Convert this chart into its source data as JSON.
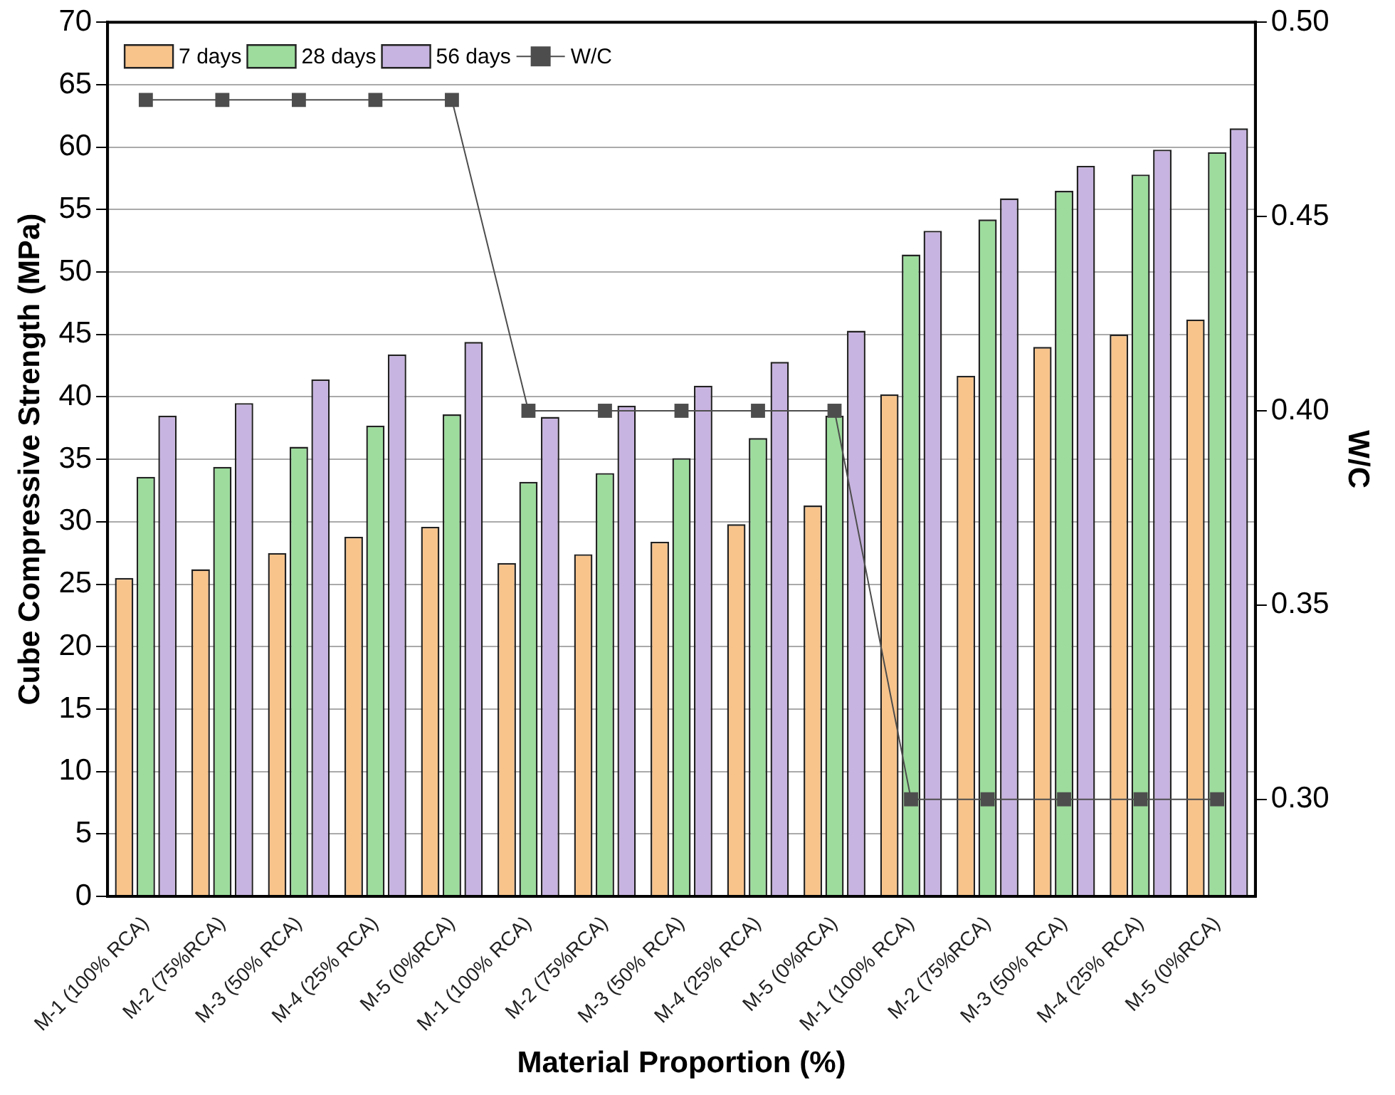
{
  "chart_data": {
    "type": "bar",
    "xlabel": "Material Proportion (%)",
    "ylabel": "Cube Compressive Strength (MPa)",
    "y2label": "W/C",
    "categories": [
      "M-1 (100% RCA)",
      "M-2 (75%RCA)",
      "M-3 (50% RCA)",
      "M-4 (25% RCA)",
      "M-5 (0%RCA)",
      "M-1 (100% RCA)",
      "M-2 (75%RCA)",
      "M-3 (50% RCA)",
      "M-4 (25% RCA)",
      "M-5 (0%RCA)",
      "M-1 (100% RCA)",
      "M-2 (75%RCA)",
      "M-3 (50% RCA)",
      "M-4 (25% RCA)",
      "M-5 (0%RCA)"
    ],
    "series": [
      {
        "name": "7 days",
        "color": "#f8c48c",
        "values": [
          25.5,
          26.2,
          27.5,
          28.8,
          29.6,
          26.7,
          27.4,
          28.4,
          29.8,
          31.3,
          40.2,
          41.7,
          44.0,
          45.0,
          46.2
        ]
      },
      {
        "name": "28 days",
        "color": "#9ddc9d",
        "values": [
          33.6,
          34.4,
          36.0,
          37.7,
          38.6,
          33.2,
          33.9,
          35.1,
          36.7,
          38.5,
          51.4,
          54.2,
          56.5,
          57.8,
          59.6
        ]
      },
      {
        "name": "56 days",
        "color": "#c8b4e0",
        "values": [
          38.5,
          39.5,
          41.4,
          43.4,
          44.4,
          38.4,
          39.3,
          40.9,
          42.8,
          45.3,
          53.3,
          55.9,
          58.5,
          59.8,
          61.5
        ]
      },
      {
        "name": "W/C",
        "type": "line",
        "axis": "y2",
        "color": "#4d4d4d",
        "marker": "square",
        "line_style": "solid",
        "values": [
          0.48,
          0.48,
          0.48,
          0.48,
          0.48,
          0.4,
          0.4,
          0.4,
          0.4,
          0.4,
          0.3,
          0.3,
          0.3,
          0.3,
          0.3
        ]
      }
    ],
    "ylim": [
      0,
      70
    ],
    "yticks": [
      0,
      5,
      10,
      15,
      20,
      25,
      30,
      35,
      40,
      45,
      50,
      55,
      60,
      65,
      70
    ],
    "y2lim": [
      0.275,
      0.5
    ],
    "y2ticks": [
      {
        "value": 0.3,
        "label": "0.30"
      },
      {
        "value": 0.35,
        "label": "0.35"
      },
      {
        "value": 0.4,
        "label": "0.40"
      },
      {
        "value": 0.45,
        "label": "0.45"
      },
      {
        "value": 0.5,
        "label": "0.50"
      }
    ],
    "grid": "y",
    "legend": "top left"
  }
}
